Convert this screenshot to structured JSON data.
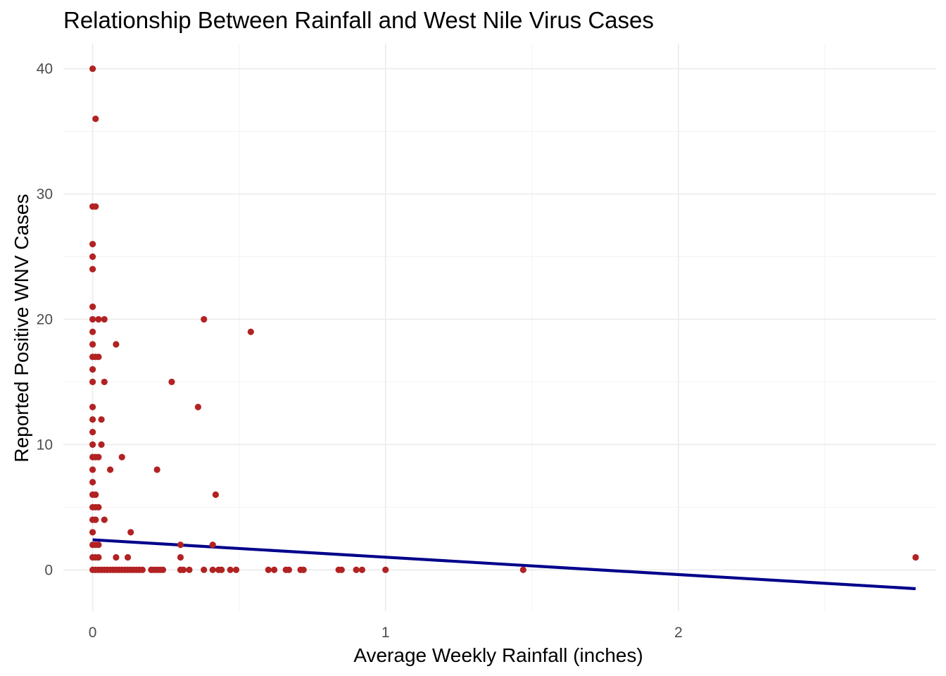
{
  "chart_data": {
    "type": "scatter",
    "title": "Relationship Between Rainfall and West Nile Virus Cases",
    "xlabel": "Average Weekly Rainfall (inches)",
    "ylabel": "Reported Positive WNV Cases",
    "xlim": [
      -0.1,
      2.88
    ],
    "ylim": [
      -3.3,
      42.0
    ],
    "x_ticks": [
      0,
      1,
      2
    ],
    "x_tick_labels": [
      "0",
      "1",
      "2"
    ],
    "y_ticks": [
      0,
      10,
      20,
      30,
      40
    ],
    "y_tick_labels": [
      "0",
      "10",
      "20",
      "30",
      "40"
    ],
    "grid": true,
    "point_color": "#b22222",
    "line_color": "#00008b",
    "points": [
      {
        "x": 0.0,
        "y": 40
      },
      {
        "x": 0.01,
        "y": 36
      },
      {
        "x": 0.0,
        "y": 29
      },
      {
        "x": 0.01,
        "y": 29
      },
      {
        "x": 0.0,
        "y": 26
      },
      {
        "x": 0.0,
        "y": 25
      },
      {
        "x": 0.0,
        "y": 24
      },
      {
        "x": 0.0,
        "y": 21
      },
      {
        "x": 0.0,
        "y": 20
      },
      {
        "x": 0.02,
        "y": 20
      },
      {
        "x": 0.04,
        "y": 20
      },
      {
        "x": 0.38,
        "y": 20
      },
      {
        "x": 0.0,
        "y": 19
      },
      {
        "x": 0.54,
        "y": 19
      },
      {
        "x": 0.0,
        "y": 18
      },
      {
        "x": 0.08,
        "y": 18
      },
      {
        "x": 0.0,
        "y": 17
      },
      {
        "x": 0.01,
        "y": 17
      },
      {
        "x": 0.02,
        "y": 17
      },
      {
        "x": 0.0,
        "y": 16
      },
      {
        "x": 0.0,
        "y": 15
      },
      {
        "x": 0.04,
        "y": 15
      },
      {
        "x": 0.27,
        "y": 15
      },
      {
        "x": 0.36,
        "y": 13
      },
      {
        "x": 0.0,
        "y": 13
      },
      {
        "x": 0.0,
        "y": 12
      },
      {
        "x": 0.03,
        "y": 12
      },
      {
        "x": 0.0,
        "y": 11
      },
      {
        "x": 0.0,
        "y": 10
      },
      {
        "x": 0.03,
        "y": 10
      },
      {
        "x": 0.1,
        "y": 9
      },
      {
        "x": 0.0,
        "y": 9
      },
      {
        "x": 0.01,
        "y": 9
      },
      {
        "x": 0.02,
        "y": 9
      },
      {
        "x": 0.0,
        "y": 8
      },
      {
        "x": 0.06,
        "y": 8
      },
      {
        "x": 0.22,
        "y": 8
      },
      {
        "x": 0.0,
        "y": 7
      },
      {
        "x": 0.0,
        "y": 6
      },
      {
        "x": 0.01,
        "y": 6
      },
      {
        "x": 0.42,
        "y": 6
      },
      {
        "x": 0.0,
        "y": 5
      },
      {
        "x": 0.01,
        "y": 5
      },
      {
        "x": 0.02,
        "y": 5
      },
      {
        "x": 0.0,
        "y": 4
      },
      {
        "x": 0.01,
        "y": 4
      },
      {
        "x": 0.04,
        "y": 4
      },
      {
        "x": 0.0,
        "y": 3
      },
      {
        "x": 0.13,
        "y": 3
      },
      {
        "x": 0.0,
        "y": 2
      },
      {
        "x": 0.01,
        "y": 2
      },
      {
        "x": 0.02,
        "y": 2
      },
      {
        "x": 0.3,
        "y": 2
      },
      {
        "x": 0.41,
        "y": 2
      },
      {
        "x": 0.0,
        "y": 1
      },
      {
        "x": 0.01,
        "y": 1
      },
      {
        "x": 0.02,
        "y": 1
      },
      {
        "x": 0.08,
        "y": 1
      },
      {
        "x": 0.12,
        "y": 1
      },
      {
        "x": 0.3,
        "y": 1
      },
      {
        "x": 2.81,
        "y": 1
      },
      {
        "x": 0.0,
        "y": 0
      },
      {
        "x": 0.01,
        "y": 0
      },
      {
        "x": 0.02,
        "y": 0
      },
      {
        "x": 0.03,
        "y": 0
      },
      {
        "x": 0.04,
        "y": 0
      },
      {
        "x": 0.05,
        "y": 0
      },
      {
        "x": 0.06,
        "y": 0
      },
      {
        "x": 0.07,
        "y": 0
      },
      {
        "x": 0.08,
        "y": 0
      },
      {
        "x": 0.09,
        "y": 0
      },
      {
        "x": 0.1,
        "y": 0
      },
      {
        "x": 0.11,
        "y": 0
      },
      {
        "x": 0.12,
        "y": 0
      },
      {
        "x": 0.13,
        "y": 0
      },
      {
        "x": 0.14,
        "y": 0
      },
      {
        "x": 0.15,
        "y": 0
      },
      {
        "x": 0.16,
        "y": 0
      },
      {
        "x": 0.17,
        "y": 0
      },
      {
        "x": 0.2,
        "y": 0
      },
      {
        "x": 0.21,
        "y": 0
      },
      {
        "x": 0.22,
        "y": 0
      },
      {
        "x": 0.23,
        "y": 0
      },
      {
        "x": 0.24,
        "y": 0
      },
      {
        "x": 0.3,
        "y": 0
      },
      {
        "x": 0.31,
        "y": 0
      },
      {
        "x": 0.33,
        "y": 0
      },
      {
        "x": 0.38,
        "y": 0
      },
      {
        "x": 0.41,
        "y": 0
      },
      {
        "x": 0.43,
        "y": 0
      },
      {
        "x": 0.44,
        "y": 0
      },
      {
        "x": 0.47,
        "y": 0
      },
      {
        "x": 0.49,
        "y": 0
      },
      {
        "x": 0.6,
        "y": 0
      },
      {
        "x": 0.62,
        "y": 0
      },
      {
        "x": 0.66,
        "y": 0
      },
      {
        "x": 0.67,
        "y": 0
      },
      {
        "x": 0.71,
        "y": 0
      },
      {
        "x": 0.72,
        "y": 0
      },
      {
        "x": 0.84,
        "y": 0
      },
      {
        "x": 0.85,
        "y": 0
      },
      {
        "x": 0.9,
        "y": 0
      },
      {
        "x": 0.92,
        "y": 0
      },
      {
        "x": 1.0,
        "y": 0
      },
      {
        "x": 1.47,
        "y": 0
      }
    ],
    "fit_line": {
      "x": [
        0.0,
        2.81
      ],
      "y": [
        2.4,
        -1.5
      ]
    }
  }
}
